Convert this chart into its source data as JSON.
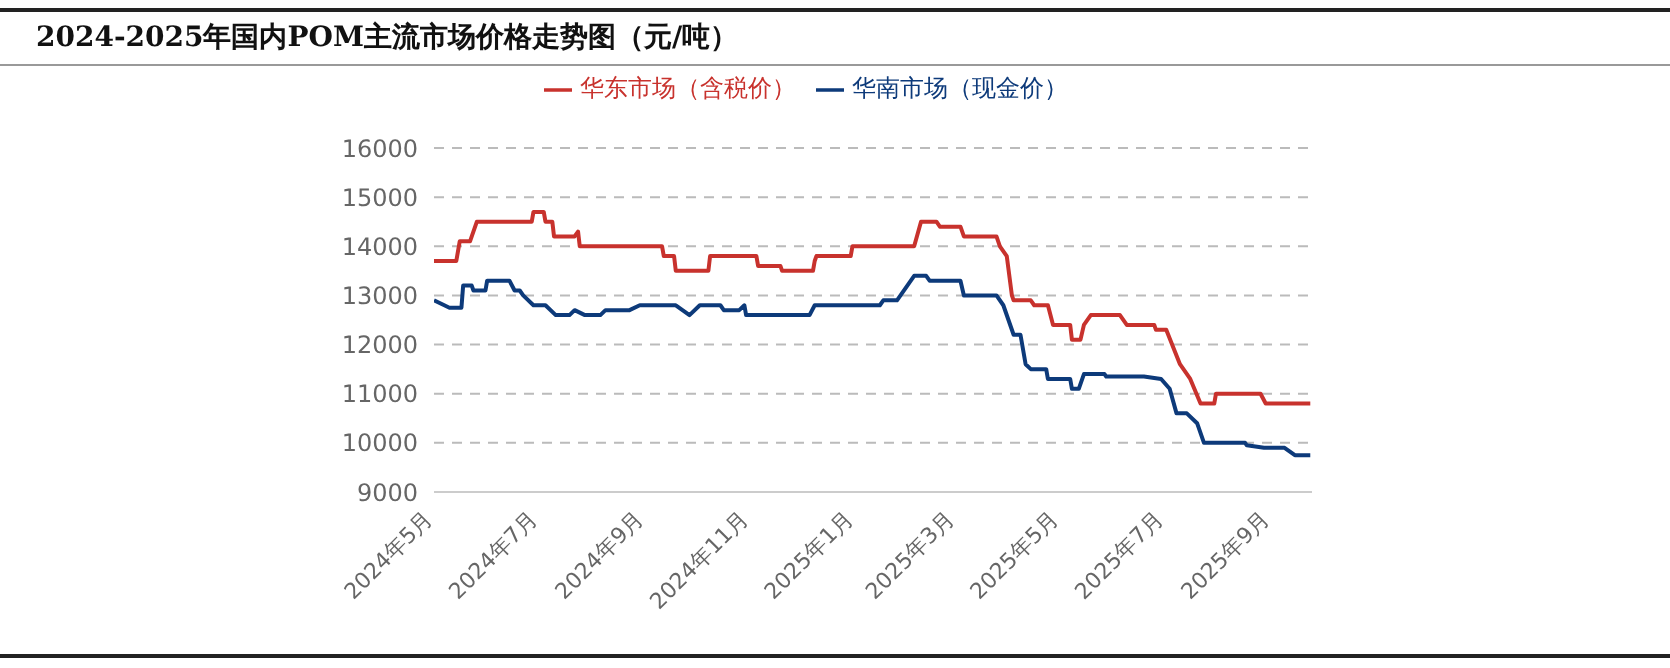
{
  "chart_data": {
    "type": "line",
    "title": "2024-2025年国内POM主流市场价格走势图（元/吨）",
    "legend": "top",
    "grid": "y",
    "marker": "none",
    "line_style": "solid",
    "xlim": [
      "2024-05-01",
      "2025-09-25"
    ],
    "xticks": [
      {
        "value": "2024-05-01",
        "label": "2024年5月"
      },
      {
        "value": "2024-07-01",
        "label": "2024年7月"
      },
      {
        "value": "2024-09-01",
        "label": "2024年9月"
      },
      {
        "value": "2024-11-01",
        "label": "2024年11月"
      },
      {
        "value": "2025-01-01",
        "label": "2025年1月"
      },
      {
        "value": "2025-03-01",
        "label": "2025年3月"
      },
      {
        "value": "2025-05-01",
        "label": "2025年5月"
      },
      {
        "value": "2025-07-01",
        "label": "2025年7月"
      },
      {
        "value": "2025-09-01",
        "label": "2025年9月"
      }
    ],
    "ylim": [
      9000,
      16000
    ],
    "yticks": [
      9000,
      10000,
      11000,
      12000,
      13000,
      14000,
      15000,
      16000
    ],
    "series": [
      {
        "name": "华东市场（含税价）",
        "color": "#c8322d",
        "x": [
          "2024-05-01",
          "2024-05-14",
          "2024-05-16",
          "2024-05-22",
          "2024-05-26",
          "2024-06-27",
          "2024-06-28",
          "2024-07-04",
          "2024-07-05",
          "2024-07-09",
          "2024-07-10",
          "2024-07-22",
          "2024-07-24",
          "2024-07-25",
          "2024-09-11",
          "2024-09-12",
          "2024-09-18",
          "2024-09-19",
          "2024-10-08",
          "2024-10-09",
          "2024-11-05",
          "2024-11-06",
          "2024-11-19",
          "2024-11-20",
          "2024-12-08",
          "2024-12-09",
          "2024-12-10",
          "2024-12-30",
          "2024-12-31",
          "2025-02-05",
          "2025-02-09",
          "2025-02-18",
          "2025-02-20",
          "2025-03-04",
          "2025-03-06",
          "2025-03-25",
          "2025-03-27",
          "2025-03-31",
          "2025-04-03",
          "2025-04-04",
          "2025-04-14",
          "2025-04-16",
          "2025-04-24",
          "2025-04-27",
          "2025-05-07",
          "2025-05-08",
          "2025-05-13",
          "2025-05-15",
          "2025-05-19",
          "2025-06-05",
          "2025-06-09",
          "2025-06-25",
          "2025-06-26",
          "2025-07-02",
          "2025-07-10",
          "2025-07-16",
          "2025-07-22",
          "2025-07-30",
          "2025-07-31",
          "2025-08-26",
          "2025-08-29",
          "2025-09-24"
        ],
        "values": [
          13700,
          13700,
          14100,
          14100,
          14500,
          14500,
          14700,
          14700,
          14500,
          14500,
          14200,
          14200,
          14300,
          14000,
          14000,
          13800,
          13800,
          13500,
          13500,
          13800,
          13800,
          13600,
          13600,
          13500,
          13500,
          13700,
          13800,
          13800,
          14000,
          14000,
          14500,
          14500,
          14400,
          14400,
          14200,
          14200,
          14000,
          13800,
          13000,
          12900,
          12900,
          12800,
          12800,
          12400,
          12400,
          12100,
          12100,
          12400,
          12600,
          12600,
          12400,
          12400,
          12300,
          12300,
          11600,
          11300,
          10800,
          10800,
          11000,
          11000,
          10800,
          10800
        ]
      },
      {
        "name": "华南市场（现金价）",
        "color": "#0d3a7a",
        "x": [
          "2024-05-01",
          "2024-05-07",
          "2024-05-10",
          "2024-05-17",
          "2024-05-18",
          "2024-05-23",
          "2024-05-24",
          "2024-05-31",
          "2024-06-01",
          "2024-06-14",
          "2024-06-17",
          "2024-06-20",
          "2024-06-22",
          "2024-06-28",
          "2024-07-05",
          "2024-07-11",
          "2024-07-19",
          "2024-07-22",
          "2024-07-28",
          "2024-08-06",
          "2024-08-09",
          "2024-08-23",
          "2024-08-29",
          "2024-09-19",
          "2024-09-27",
          "2024-10-03",
          "2024-10-15",
          "2024-10-17",
          "2024-10-26",
          "2024-10-29",
          "2024-10-30",
          "2024-12-06",
          "2024-12-09",
          "2025-01-16",
          "2025-01-18",
          "2025-01-26",
          "2025-02-05",
          "2025-02-12",
          "2025-02-14",
          "2025-03-04",
          "2025-03-06",
          "2025-03-25",
          "2025-03-29",
          "2025-04-04",
          "2025-04-08",
          "2025-04-11",
          "2025-04-14",
          "2025-04-23",
          "2025-04-24",
          "2025-05-07",
          "2025-05-08",
          "2025-05-12",
          "2025-05-15",
          "2025-05-27",
          "2025-05-28",
          "2025-06-19",
          "2025-06-29",
          "2025-07-04",
          "2025-07-08",
          "2025-07-14",
          "2025-07-20",
          "2025-07-24",
          "2025-08-17",
          "2025-08-18",
          "2025-08-28",
          "2025-09-09",
          "2025-09-15",
          "2025-09-24"
        ],
        "values": [
          12900,
          12800,
          12750,
          12750,
          13200,
          13200,
          13100,
          13100,
          13300,
          13300,
          13100,
          13100,
          13000,
          12800,
          12800,
          12600,
          12600,
          12700,
          12600,
          12600,
          12700,
          12700,
          12800,
          12800,
          12600,
          12800,
          12800,
          12700,
          12700,
          12800,
          12600,
          12600,
          12800,
          12800,
          12900,
          12900,
          13400,
          13400,
          13300,
          13300,
          13000,
          13000,
          12800,
          12200,
          12200,
          11600,
          11500,
          11500,
          11300,
          11300,
          11100,
          11100,
          11400,
          11400,
          11350,
          11350,
          11300,
          11100,
          10600,
          10600,
          10400,
          10000,
          10000,
          9950,
          9900,
          9900,
          9750,
          9750
        ]
      }
    ]
  }
}
